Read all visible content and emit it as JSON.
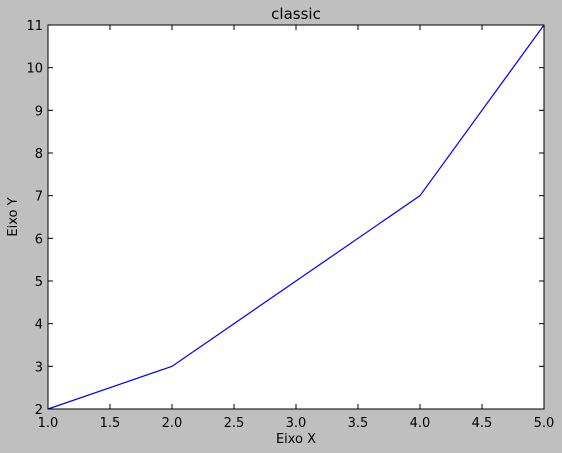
{
  "chart_data": {
    "type": "line",
    "title": "classic",
    "xlabel": "Eixo X",
    "ylabel": "Eixo Y",
    "xlim": [
      1.0,
      5.0
    ],
    "ylim": [
      2,
      11
    ],
    "xticks": [
      "1.0",
      "1.5",
      "2.0",
      "2.5",
      "3.0",
      "3.5",
      "4.0",
      "4.5",
      "5.0"
    ],
    "yticks": [
      "2",
      "3",
      "4",
      "5",
      "6",
      "7",
      "8",
      "9",
      "10",
      "11"
    ],
    "grid": false,
    "series": [
      {
        "x": [
          1,
          2,
          4,
          5
        ],
        "y": [
          2,
          3,
          7,
          11
        ],
        "color": "#0000ff"
      }
    ]
  }
}
